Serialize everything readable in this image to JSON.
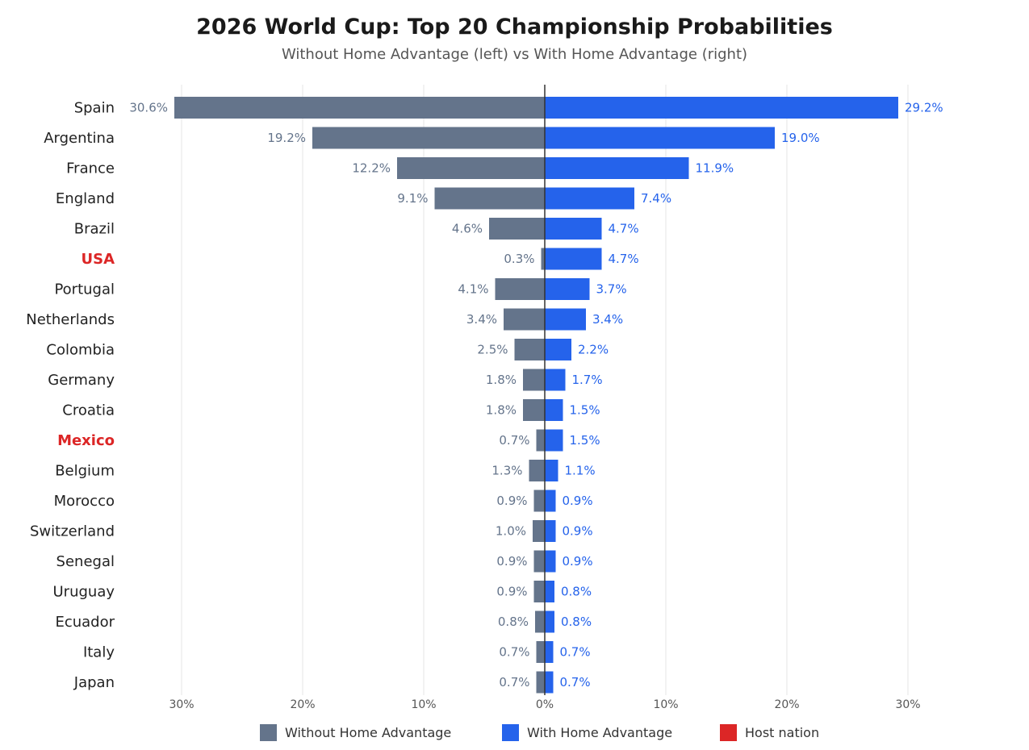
{
  "chart_data": {
    "type": "bar",
    "orientation": "horizontal-diverging",
    "title": "2026 World Cup: Top 20 Championship Probabilities",
    "subtitle": "Without Home Advantage (left) vs With Home Advantage (right)",
    "categories": [
      "Spain",
      "Argentina",
      "France",
      "England",
      "Brazil",
      "USA",
      "Portugal",
      "Netherlands",
      "Colombia",
      "Germany",
      "Croatia",
      "Mexico",
      "Belgium",
      "Morocco",
      "Switzerland",
      "Senegal",
      "Uruguay",
      "Ecuador",
      "Italy",
      "Japan"
    ],
    "host_nations": [
      "USA",
      "Mexico"
    ],
    "series": [
      {
        "name": "Without Home Advantage",
        "side": "left",
        "color": "#64748b",
        "labels_color": "#64748b",
        "values": [
          30.6,
          19.2,
          12.2,
          9.1,
          4.6,
          0.3,
          4.1,
          3.4,
          2.5,
          1.8,
          1.8,
          0.7,
          1.3,
          0.9,
          1.0,
          0.9,
          0.9,
          0.8,
          0.7,
          0.7
        ]
      },
      {
        "name": "With Home Advantage",
        "side": "right",
        "color": "#2563eb",
        "labels_color": "#2563eb",
        "values": [
          29.2,
          19.0,
          11.9,
          7.4,
          4.7,
          4.7,
          3.7,
          3.4,
          2.2,
          1.7,
          1.5,
          1.5,
          1.1,
          0.9,
          0.9,
          0.9,
          0.8,
          0.8,
          0.7,
          0.7
        ]
      }
    ],
    "xlim": [
      -30,
      30
    ],
    "xticks": [
      -30,
      -20,
      -10,
      0,
      10,
      20,
      30
    ],
    "xtick_labels": [
      "30%",
      "20%",
      "10%",
      "0%",
      "10%",
      "20%",
      "30%"
    ],
    "grid": true,
    "legend": [
      {
        "label": "Without Home Advantage",
        "color": "#64748b"
      },
      {
        "label": "With Home Advantage",
        "color": "#2563eb"
      },
      {
        "label": "Host nation",
        "color": "#dc2626"
      }
    ],
    "host_color": "#dc2626",
    "legend_position": "bottom"
  }
}
